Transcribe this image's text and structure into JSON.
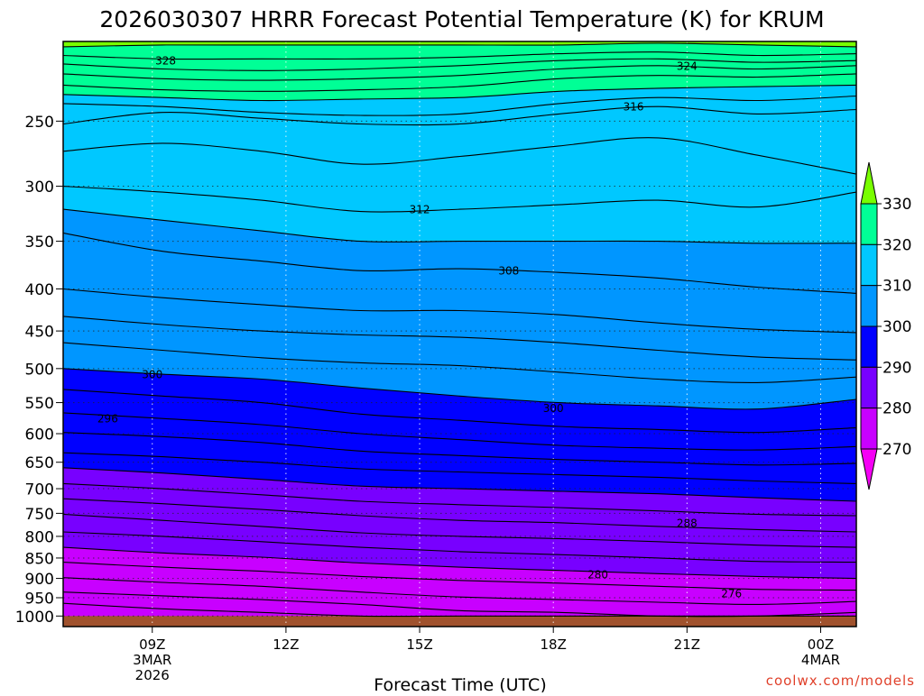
{
  "chart_data": {
    "type": "heatmap",
    "title": "2026030307 HRRR Forecast Potential Temperature (K) for KRUM",
    "xlabel": "Forecast Time (UTC)",
    "ylabel": "",
    "credit": "coolwx.com/models",
    "x_range_hours": [
      7,
      24.8
    ],
    "x_ticks": [
      {
        "hour": 9,
        "lines": [
          "09Z",
          "3MAR",
          "2026"
        ]
      },
      {
        "hour": 12,
        "lines": [
          "12Z"
        ]
      },
      {
        "hour": 15,
        "lines": [
          "15Z"
        ]
      },
      {
        "hour": 18,
        "lines": [
          "18Z"
        ]
      },
      {
        "hour": 21,
        "lines": [
          "21Z"
        ]
      },
      {
        "hour": 24,
        "lines": [
          "00Z",
          "4MAR"
        ]
      }
    ],
    "y_scale": "log",
    "y_range_hpa": [
      1030,
      200
    ],
    "y_ticks": [
      250,
      300,
      350,
      400,
      450,
      500,
      550,
      600,
      650,
      700,
      750,
      800,
      850,
      900,
      950,
      1000
    ],
    "grid": true,
    "terrain_pressure_hpa": 1000,
    "terrain_color": "#a0522d",
    "colorbar": {
      "labels": [
        "270",
        "280",
        "290",
        "300",
        "310",
        "320",
        "330"
      ],
      "colors": [
        "#f500f5",
        "#c800ff",
        "#7800ff",
        "#0000ff",
        "#0096ff",
        "#00c8ff",
        "#00ff96",
        "#78ff00"
      ]
    },
    "contour_labels": [
      {
        "text": "328",
        "hour": 9.3,
        "p": 211
      },
      {
        "text": "324",
        "hour": 21.0,
        "p": 214
      },
      {
        "text": "316",
        "hour": 19.8,
        "p": 240
      },
      {
        "text": "312",
        "hour": 15.0,
        "p": 320
      },
      {
        "text": "308",
        "hour": 17.0,
        "p": 380
      },
      {
        "text": "300",
        "hour": 9.0,
        "p": 508
      },
      {
        "text": "300",
        "hour": 18.0,
        "p": 558
      },
      {
        "text": "296",
        "hour": 8.0,
        "p": 575
      },
      {
        "text": "288",
        "hour": 21.0,
        "p": 770
      },
      {
        "text": "280",
        "hour": 19.0,
        "p": 890
      },
      {
        "text": "276",
        "hour": 22.0,
        "p": 938
      }
    ],
    "isentropes": [
      {
        "theta": 330,
        "pressure_hpa": [
          203,
          202,
          202,
          202,
          202,
          202,
          201,
          202,
          203
        ]
      },
      {
        "theta": 328,
        "pressure_hpa": [
          208,
          210,
          210,
          210,
          209,
          207,
          206,
          208,
          207
        ]
      },
      {
        "theta": 326,
        "pressure_hpa": [
          213,
          216,
          217,
          216,
          214,
          211,
          210,
          212,
          211
        ]
      },
      {
        "theta": 324,
        "pressure_hpa": [
          219,
          222,
          223,
          222,
          220,
          216,
          214,
          216,
          214
        ]
      },
      {
        "theta": 322,
        "pressure_hpa": [
          226,
          229,
          230,
          229,
          227,
          222,
          220,
          221,
          219
        ]
      },
      {
        "theta": 320,
        "pressure_hpa": [
          232,
          234,
          236,
          235,
          234,
          230,
          228,
          227,
          226
        ]
      },
      {
        "theta": 318,
        "pressure_hpa": [
          238,
          240,
          244,
          246,
          245,
          238,
          234,
          236,
          233
        ]
      },
      {
        "theta": 316,
        "pressure_hpa": [
          252,
          244,
          248,
          252,
          252,
          245,
          240,
          245,
          242
        ]
      },
      {
        "theta": 314,
        "pressure_hpa": [
          272,
          266,
          272,
          282,
          276,
          268,
          262,
          275,
          290
        ]
      },
      {
        "theta": 312,
        "pressure_hpa": [
          300,
          305,
          312,
          322,
          320,
          316,
          312,
          318,
          305
        ]
      },
      {
        "theta": 310,
        "pressure_hpa": [
          320,
          330,
          340,
          350,
          350,
          350,
          350,
          352,
          352
        ]
      },
      {
        "theta": 308,
        "pressure_hpa": [
          342,
          360,
          370,
          380,
          378,
          382,
          388,
          398,
          405
        ]
      },
      {
        "theta": 306,
        "pressure_hpa": [
          400,
          410,
          418,
          425,
          425,
          430,
          440,
          448,
          452
        ]
      },
      {
        "theta": 304,
        "pressure_hpa": [
          432,
          442,
          450,
          455,
          458,
          465,
          475,
          484,
          488
        ]
      },
      {
        "theta": 302,
        "pressure_hpa": [
          465,
          475,
          485,
          492,
          496,
          505,
          515,
          520,
          512
        ]
      },
      {
        "theta": 300,
        "pressure_hpa": [
          500,
          508,
          515,
          528,
          540,
          550,
          555,
          560,
          545
        ]
      },
      {
        "theta": 298,
        "pressure_hpa": [
          530,
          540,
          550,
          568,
          578,
          588,
          593,
          598,
          590
        ]
      },
      {
        "theta": 296,
        "pressure_hpa": [
          566,
          575,
          585,
          600,
          610,
          620,
          625,
          628,
          622
        ]
      },
      {
        "theta": 294,
        "pressure_hpa": [
          598,
          605,
          615,
          630,
          638,
          645,
          650,
          655,
          652
        ]
      },
      {
        "theta": 292,
        "pressure_hpa": [
          633,
          640,
          650,
          662,
          668,
          673,
          678,
          685,
          690
        ]
      },
      {
        "theta": 290,
        "pressure_hpa": [
          660,
          670,
          682,
          695,
          700,
          705,
          710,
          718,
          725
        ]
      },
      {
        "theta": 288,
        "pressure_hpa": [
          690,
          700,
          712,
          725,
          732,
          738,
          745,
          752,
          755
        ]
      },
      {
        "theta": 286,
        "pressure_hpa": [
          720,
          730,
          742,
          755,
          765,
          770,
          778,
          785,
          790
        ]
      },
      {
        "theta": 284,
        "pressure_hpa": [
          752,
          765,
          778,
          792,
          800,
          805,
          812,
          820,
          825
        ]
      },
      {
        "theta": 282,
        "pressure_hpa": [
          790,
          800,
          812,
          825,
          835,
          842,
          850,
          858,
          860
        ]
      },
      {
        "theta": 280,
        "pressure_hpa": [
          825,
          838,
          848,
          862,
          872,
          880,
          888,
          895,
          900
        ]
      },
      {
        "theta": 278,
        "pressure_hpa": [
          860,
          872,
          882,
          895,
          905,
          912,
          920,
          928,
          930
        ]
      },
      {
        "theta": 276,
        "pressure_hpa": [
          898,
          910,
          920,
          935,
          948,
          955,
          962,
          968,
          960
        ]
      },
      {
        "theta": 274,
        "pressure_hpa": [
          935,
          945,
          955,
          968,
          985,
          990,
          1000,
          1000,
          990
        ]
      },
      {
        "theta": 272,
        "pressure_hpa": [
          965,
          980,
          990,
          1000,
          1000,
          1000,
          1000,
          1000,
          1000
        ]
      }
    ]
  }
}
